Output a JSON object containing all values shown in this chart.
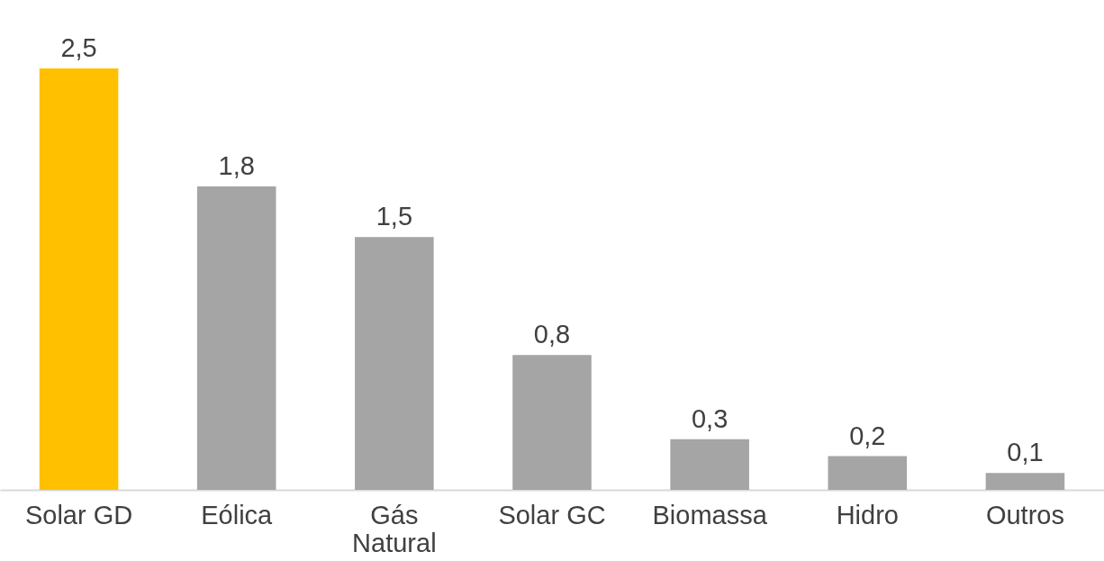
{
  "chart_data": {
    "type": "bar",
    "categories": [
      "Solar GD",
      "Eólica",
      "Gás Natural",
      "Solar GC",
      "Biomassa",
      "Hidro",
      "Outros"
    ],
    "values": [
      2.5,
      1.8,
      1.5,
      0.8,
      0.3,
      0.2,
      0.1
    ],
    "colors": [
      "#ffc000",
      "#a5a5a5",
      "#a5a5a5",
      "#a5a5a5",
      "#a5a5a5",
      "#a5a5a5",
      "#a5a5a5"
    ],
    "value_labels": [
      "2,5",
      "1,8",
      "1,5",
      "0,8",
      "0,3",
      "0,2",
      "0,1"
    ],
    "grid": false
  }
}
